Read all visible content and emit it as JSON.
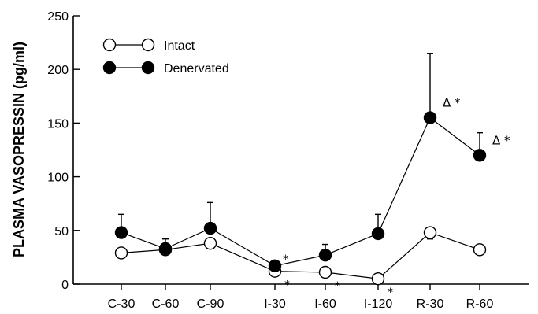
{
  "chart_data": {
    "type": "line",
    "title": "",
    "xlabel": "",
    "ylabel": "PLASMA VASOPRESSIN (pg/ml)",
    "ylim": [
      0,
      250
    ],
    "yticks": [
      0,
      50,
      100,
      150,
      200,
      250
    ],
    "categories": [
      "C-30",
      "C-60",
      "C-90",
      "I-30",
      "I-60",
      "I-120",
      "R-30",
      "R-60"
    ],
    "legend_position": "top-left",
    "series": [
      {
        "name": "Intact",
        "marker": "open-circle",
        "values": [
          29,
          32,
          38,
          12,
          11,
          5,
          48,
          32
        ],
        "error_below": [
          0,
          0,
          0,
          0,
          0,
          0,
          6,
          0
        ],
        "error_above": [
          0,
          0,
          0,
          0,
          0,
          0,
          0,
          0
        ],
        "annotations": [
          {
            "index": 3,
            "text": "*"
          },
          {
            "index": 4,
            "text": "*"
          },
          {
            "index": 5,
            "text": "*"
          }
        ]
      },
      {
        "name": "Denervated",
        "marker": "filled-circle",
        "values": [
          48,
          33,
          52,
          17,
          27,
          47,
          155,
          120
        ],
        "error_below": [
          0,
          0,
          0,
          0,
          0,
          0,
          0,
          0
        ],
        "error_above": [
          17,
          9,
          24,
          0,
          10,
          18,
          60,
          21
        ],
        "annotations": [
          {
            "index": 3,
            "text": "*"
          },
          {
            "index": 6,
            "text": "Δ *"
          },
          {
            "index": 7,
            "text": "Δ *"
          }
        ]
      }
    ]
  }
}
